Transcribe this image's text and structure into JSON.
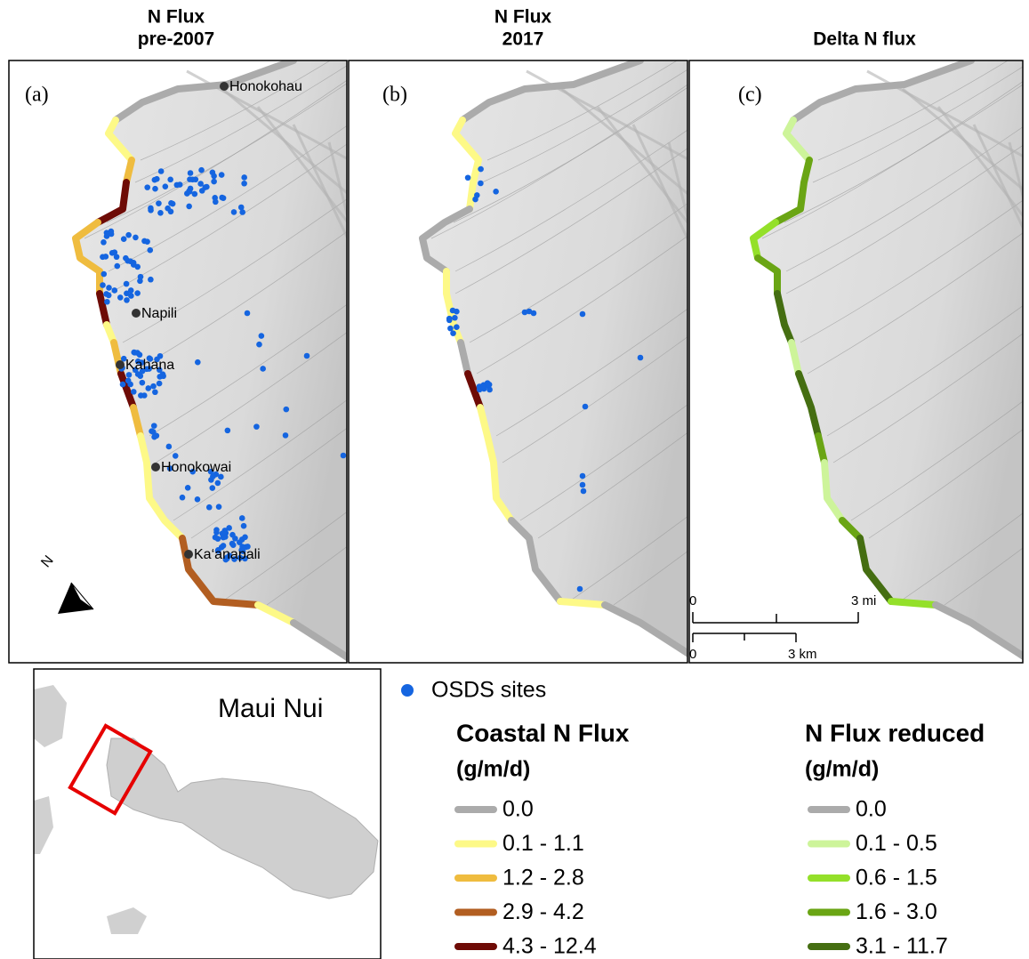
{
  "panels": [
    {
      "title_line1": "N Flux",
      "title_line2": "pre-2007",
      "label": "(a)"
    },
    {
      "title_line1": "N Flux",
      "title_line2": "2017",
      "label": "(b)"
    },
    {
      "title": "Delta N flux",
      "label": "(c)"
    }
  ],
  "places": [
    "Honokohau",
    "Napili",
    "Kahana",
    "Honokowai",
    "Ka‘anapali"
  ],
  "north": "N",
  "scale_bar": {
    "mi_labels": [
      "0",
      "3 mi"
    ],
    "km_labels": [
      "0",
      "3 km"
    ]
  },
  "inset": {
    "title": "Maui Nui"
  },
  "legend": {
    "osds": {
      "label": "OSDS sites",
      "color": "#1565e0"
    },
    "coastal": {
      "title": "Coastal N Flux",
      "units": "(g/m/d)",
      "classes": [
        {
          "label": "0.0",
          "color": "#ababab"
        },
        {
          "label": "0.1 - 1.1",
          "color": "#fdf987"
        },
        {
          "label": "1.2 - 2.8",
          "color": "#efbc3f"
        },
        {
          "label": "2.9 - 4.2",
          "color": "#b25e21"
        },
        {
          "label": "4.3 - 12.4",
          "color": "#6e0b06"
        }
      ]
    },
    "reduced": {
      "title": "N Flux reduced",
      "units": "(g/m/d)",
      "classes": [
        {
          "label": "0.0",
          "color": "#ababab"
        },
        {
          "label": "0.1 - 0.5",
          "color": "#cdf49a"
        },
        {
          "label": "0.6 - 1.5",
          "color": "#94e02a"
        },
        {
          "label": "1.6 - 3.0",
          "color": "#6aa514"
        },
        {
          "label": "3.1 - 11.7",
          "color": "#456e12"
        }
      ]
    }
  }
}
